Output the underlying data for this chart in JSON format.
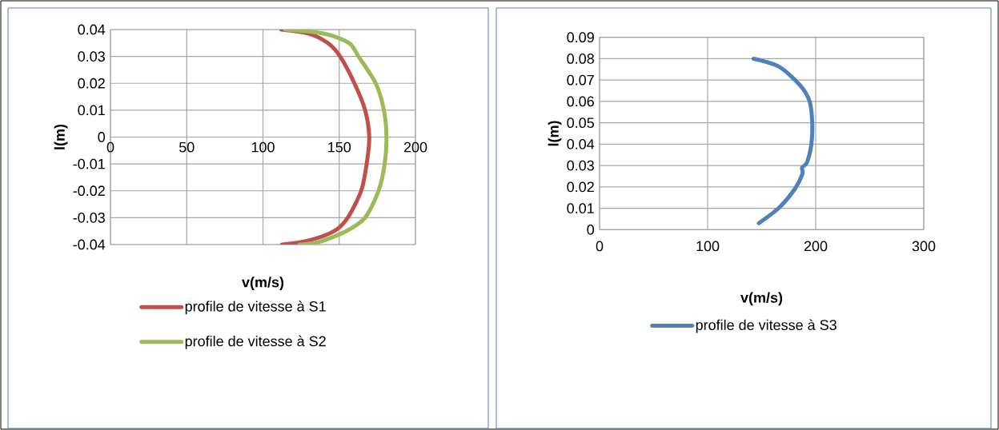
{
  "chart_data": [
    {
      "type": "line",
      "xlabel": "v(m/s)",
      "ylabel": "l(m)",
      "xlim": [
        0,
        200
      ],
      "ylim": [
        -0.04,
        0.04
      ],
      "xticks": [
        0,
        50,
        100,
        150,
        200
      ],
      "yticks": [
        -0.04,
        -0.03,
        -0.02,
        -0.01,
        0,
        0.01,
        0.02,
        0.03,
        0.04
      ],
      "grid": true,
      "legend": "bottom",
      "marker": "none",
      "line_style": "solid",
      "series": [
        {
          "name": "profile de vitesse à S1",
          "color": "#c0504d",
          "x": [
            112,
            130,
            142.5,
            150.6,
            160,
            167,
            169.7,
            168,
            164.4,
            155.6,
            146.7,
            130,
            112.5
          ],
          "values": [
            0.04,
            0.0385,
            0.035,
            0.03,
            0.02,
            0.01,
            0,
            -0.01,
            -0.02,
            -0.03,
            -0.035,
            -0.0385,
            -0.04
          ]
        },
        {
          "name": "profile de vitesse à S2",
          "color": "#9bbb59",
          "x": [
            114.4,
            140,
            156.5,
            162.6,
            174,
            179.3,
            181,
            179.8,
            175.8,
            167,
            154.6,
            137,
            124
          ],
          "values": [
            0.04,
            0.0385,
            0.035,
            0.03,
            0.02,
            0.01,
            0,
            -0.01,
            -0.02,
            -0.03,
            -0.035,
            -0.039,
            -0.04
          ]
        }
      ]
    },
    {
      "type": "line",
      "xlabel": "v(m/s)",
      "ylabel": "l(m)",
      "xlim": [
        0,
        300
      ],
      "ylim": [
        0,
        0.09
      ],
      "xticks": [
        0,
        100,
        200,
        300
      ],
      "yticks": [
        0,
        0.01,
        0.02,
        0.03,
        0.04,
        0.05,
        0.06,
        0.07,
        0.08,
        0.09
      ],
      "grid": true,
      "legend": "bottom",
      "marker": "none",
      "line_style": "solid",
      "series": [
        {
          "name": "profile de vitesse à S3",
          "color": "#4f81bd",
          "x": [
            142.5,
            166,
            185.7,
            194.4,
            196.8,
            196,
            191.9,
            187.4,
            187.7,
            180.7,
            166,
            147.4
          ],
          "values": [
            0.08,
            0.0763,
            0.0675,
            0.06,
            0.05,
            0.04,
            0.0314,
            0.029,
            0.026,
            0.019,
            0.0102,
            0.003
          ]
        }
      ]
    }
  ]
}
